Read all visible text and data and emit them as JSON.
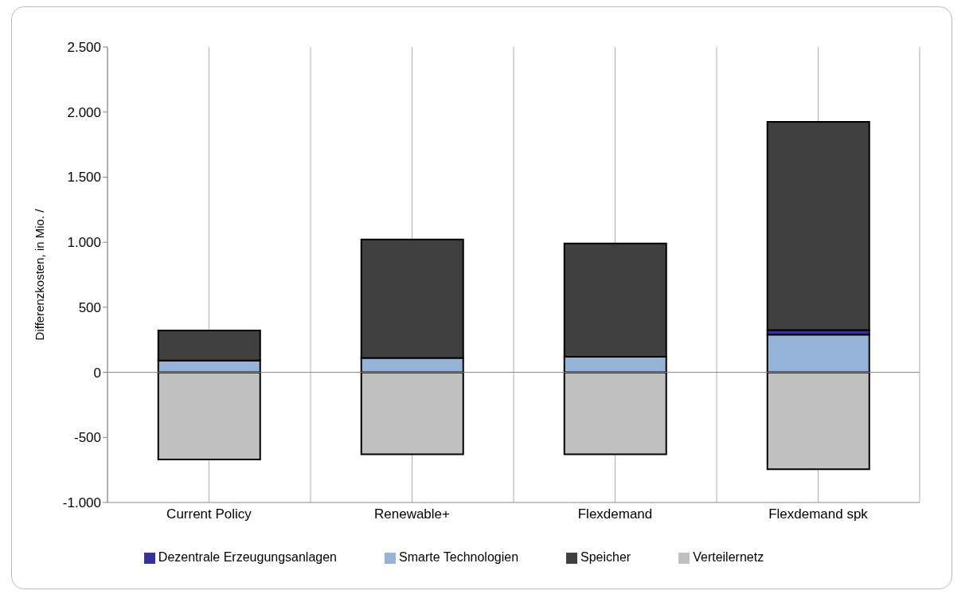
{
  "chart_data": {
    "type": "bar",
    "stacked": true,
    "ylabel": "Differenzkosten, in Mio. /",
    "categories": [
      "Current Policy",
      "Renewable+",
      "Flexdemand",
      "Flexdemand spk"
    ],
    "series": [
      {
        "name": "Verteilernetz",
        "color": "#c0c0c0",
        "values": [
          -670,
          -630,
          -630,
          -745
        ]
      },
      {
        "name": "Smarte Technologien",
        "color": "#95b3d7",
        "values": [
          90,
          110,
          120,
          290
        ]
      },
      {
        "name": "Dezentrale Erzeugungsanlagen",
        "color": "#333399",
        "values": [
          null,
          null,
          null,
          35
        ]
      },
      {
        "name": "Speicher",
        "color": "#404040",
        "values": [
          232,
          910,
          870,
          1600
        ]
      }
    ],
    "ylim": [
      -1000,
      2500
    ],
    "yticks": [
      {
        "value": -1000,
        "label": "-1.000"
      },
      -500,
      0,
      500,
      {
        "value": 1000,
        "label": "1.000"
      },
      {
        "value": 1500,
        "label": "1.500"
      },
      {
        "value": 2000,
        "label": "2.000"
      },
      {
        "value": 2500,
        "label": "2.500"
      }
    ],
    "grid": "x",
    "legend": "bottom"
  }
}
